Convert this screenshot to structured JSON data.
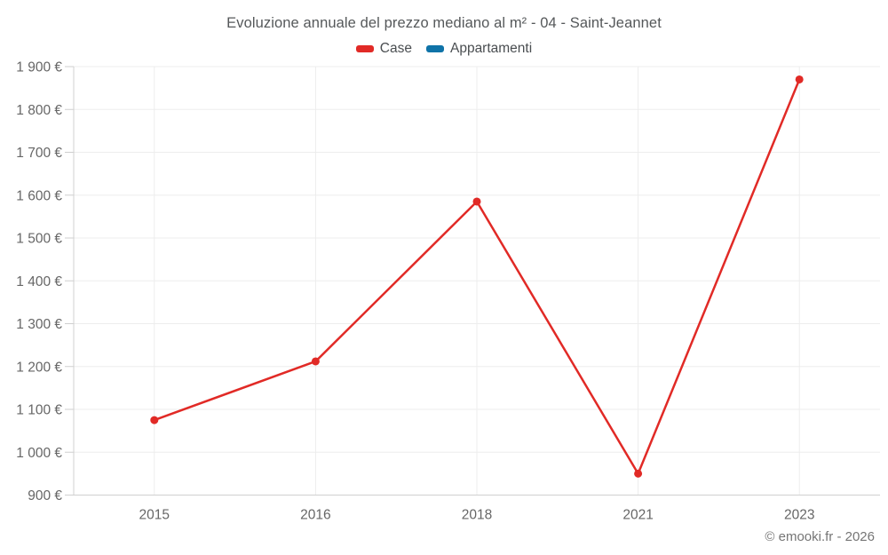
{
  "chart": {
    "title": "Evoluzione annuale del prezzo mediano al m² - 04 - Saint-Jeannet",
    "footer": "© emooki.fr - 2026"
  },
  "chart_data": {
    "type": "line",
    "title": "Evoluzione annuale del prezzo mediano al m² - 04 - Saint-Jeannet",
    "categories": [
      "2015",
      "2016",
      "2018",
      "2021",
      "2023"
    ],
    "series": [
      {
        "name": "Case",
        "color": "#e12a26",
        "values": [
          1075,
          1212,
          1585,
          950,
          1870
        ]
      },
      {
        "name": "Appartamenti",
        "color": "#0f73a8",
        "values": []
      }
    ],
    "xlabel": "",
    "ylabel": "",
    "ylim": [
      900,
      1900
    ],
    "ytick_step": 100,
    "ytick_suffix": " €",
    "grid": true,
    "legend_position": "top",
    "footer": "© emooki.fr - 2026",
    "colors": {
      "grid": "#ededed",
      "axis": "#d0d0d0",
      "tick": "#cfcfcf",
      "axis_label": "#666666",
      "title_text": "#55585a",
      "footer_text": "#757575"
    }
  }
}
